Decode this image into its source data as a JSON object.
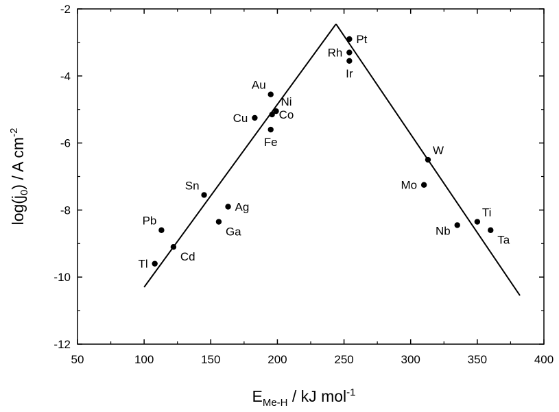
{
  "chart_data": {
    "type": "scatter",
    "title": "",
    "xlabel": {
      "main": "E",
      "sub": "Me-H",
      "rest": " / kJ mol",
      "sup": "-1"
    },
    "ylabel": {
      "pre": "log(j",
      "sub": "0",
      "mid": ") / A cm",
      "sup": "-2"
    },
    "xlim": [
      50,
      400
    ],
    "ylim": [
      -12,
      -2
    ],
    "xticks": [
      50,
      100,
      150,
      200,
      250,
      300,
      350,
      400
    ],
    "yticks": [
      -12,
      -10,
      -8,
      -6,
      -4,
      -2
    ],
    "grid": false,
    "points": [
      {
        "label": "Pt",
        "x": 254,
        "y": -2.9,
        "anchor": "right"
      },
      {
        "label": "Rh",
        "x": 254,
        "y": -3.3,
        "anchor": "left"
      },
      {
        "label": "Ir",
        "x": 254,
        "y": -3.55,
        "anchor": "below"
      },
      {
        "label": "Au",
        "x": 195,
        "y": -4.55,
        "anchor": "upper-left"
      },
      {
        "label": "Ni",
        "x": 199,
        "y": -5.05,
        "anchor": "upper-right"
      },
      {
        "label": "Co",
        "x": 196,
        "y": -5.15,
        "anchor": "right"
      },
      {
        "label": "Cu",
        "x": 183,
        "y": -5.25,
        "anchor": "left"
      },
      {
        "label": "Fe",
        "x": 195,
        "y": -5.6,
        "anchor": "below"
      },
      {
        "label": "W",
        "x": 313,
        "y": -6.5,
        "anchor": "upper-right"
      },
      {
        "label": "Mo",
        "x": 310,
        "y": -7.25,
        "anchor": "left"
      },
      {
        "label": "Sn",
        "x": 145,
        "y": -7.55,
        "anchor": "upper-left"
      },
      {
        "label": "Ag",
        "x": 163,
        "y": -7.9,
        "anchor": "right"
      },
      {
        "label": "Ga",
        "x": 156,
        "y": -8.35,
        "anchor": "lower-right"
      },
      {
        "label": "Ti",
        "x": 350,
        "y": -8.35,
        "anchor": "upper-right"
      },
      {
        "label": "Nb",
        "x": 335,
        "y": -8.45,
        "anchor": "lower-left"
      },
      {
        "label": "Ta",
        "x": 360,
        "y": -8.6,
        "anchor": "lower-right"
      },
      {
        "label": "Pb",
        "x": 113,
        "y": -8.6,
        "anchor": "upper-left"
      },
      {
        "label": "Cd",
        "x": 122,
        "y": -9.1,
        "anchor": "lower-right"
      },
      {
        "label": "Tl",
        "x": 108,
        "y": -9.6,
        "anchor": "left"
      }
    ],
    "trend_lines": [
      {
        "x": [
          100,
          244
        ],
        "y": [
          -10.3,
          -2.45
        ]
      },
      {
        "x": [
          244,
          382
        ],
        "y": [
          -2.45,
          -10.55
        ]
      }
    ],
    "colors": {
      "marker": "#000000",
      "line": "#000000",
      "axis": "#000000"
    }
  }
}
